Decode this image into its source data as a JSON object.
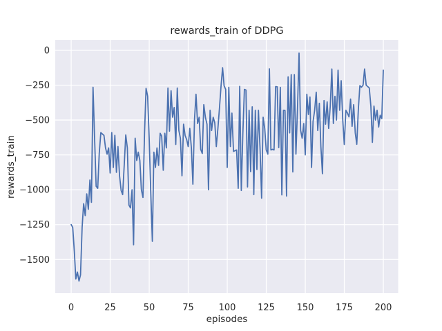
{
  "figure": {
    "title": "rewards_train of DDPG",
    "xlabel": "episodes",
    "ylabel": "rewards_train"
  },
  "colors": {
    "line": "#4c72b0",
    "axes_background": "#eaeaf2",
    "grid": "#ffffff",
    "text": "#262626",
    "figure_background": "#ffffff"
  },
  "chart_data": {
    "type": "line",
    "title": "rewards_train of DDPG",
    "xlabel": "episodes",
    "ylabel": "rewards_train",
    "grid": true,
    "legend": "none",
    "xlim": [
      -10.2,
      209.5
    ],
    "ylim": [
      -1741,
      74
    ],
    "x_ticks": [
      0,
      25,
      50,
      75,
      100,
      125,
      150,
      175,
      200
    ],
    "x_tick_labels": [
      "0",
      "25",
      "50",
      "75",
      "100",
      "125",
      "150",
      "175",
      "200"
    ],
    "y_ticks": [
      0,
      -250,
      -500,
      -750,
      -1000,
      -1250,
      -1500
    ],
    "y_tick_labels": [
      "0",
      "−250",
      "−500",
      "−750",
      "−1000",
      "−1250",
      "−1500"
    ],
    "series_name": "rewards_train",
    "x": [
      0,
      1,
      2,
      3,
      4,
      5,
      6,
      7,
      8,
      9,
      10,
      11,
      12,
      13,
      14,
      15,
      16,
      17,
      18,
      19,
      20,
      21,
      22,
      23,
      24,
      25,
      26,
      27,
      28,
      29,
      30,
      31,
      32,
      33,
      34,
      35,
      36,
      37,
      38,
      39,
      40,
      41,
      42,
      43,
      44,
      45,
      46,
      47,
      48,
      49,
      50,
      51,
      52,
      53,
      54,
      55,
      56,
      57,
      58,
      59,
      60,
      61,
      62,
      63,
      64,
      65,
      66,
      67,
      68,
      69,
      70,
      71,
      72,
      73,
      74,
      75,
      76,
      77,
      78,
      79,
      80,
      81,
      82,
      83,
      84,
      85,
      86,
      87,
      88,
      89,
      90,
      91,
      92,
      93,
      94,
      95,
      96,
      97,
      98,
      99,
      100,
      101,
      102,
      103,
      104,
      105,
      106,
      107,
      108,
      109,
      110,
      111,
      112,
      113,
      114,
      115,
      116,
      117,
      118,
      119,
      120,
      121,
      122,
      123,
      124,
      125,
      126,
      127,
      128,
      129,
      130,
      131,
      132,
      133,
      134,
      135,
      136,
      137,
      138,
      139,
      140,
      141,
      142,
      143,
      144,
      145,
      146,
      147,
      148,
      149,
      150,
      151,
      152,
      153,
      154,
      155,
      156,
      157,
      158,
      159,
      160,
      161,
      162,
      163,
      164,
      165,
      166,
      167,
      168,
      169,
      170,
      171,
      172,
      173,
      174,
      175,
      176,
      177,
      178,
      179,
      180,
      181,
      182,
      183,
      184,
      185,
      186,
      187,
      188,
      189,
      190,
      191,
      192,
      193,
      194,
      195,
      196,
      197,
      198,
      199,
      200
    ],
    "y": [
      -1250,
      -1270,
      -1440,
      -1640,
      -1590,
      -1655,
      -1610,
      -1270,
      -1100,
      -1185,
      -1030,
      -1140,
      -930,
      -1090,
      -265,
      -620,
      -975,
      -990,
      -740,
      -590,
      -600,
      -610,
      -700,
      -745,
      -700,
      -880,
      -590,
      -840,
      -610,
      -875,
      -690,
      -900,
      -1005,
      -1035,
      -820,
      -607,
      -700,
      -1110,
      -1130,
      -1000,
      -1395,
      -630,
      -790,
      -730,
      -790,
      -1000,
      -1055,
      -590,
      -273,
      -330,
      -630,
      -1020,
      -1370,
      -730,
      -840,
      -700,
      -825,
      -595,
      -615,
      -860,
      -595,
      -700,
      -270,
      -580,
      -290,
      -480,
      -410,
      -675,
      -270,
      -575,
      -630,
      -900,
      -530,
      -610,
      -640,
      -690,
      -560,
      -700,
      -960,
      -500,
      -315,
      -525,
      -480,
      -710,
      -740,
      -390,
      -480,
      -530,
      -1000,
      -430,
      -575,
      -480,
      -520,
      -690,
      -560,
      -420,
      -260,
      -125,
      -255,
      -280,
      -840,
      -266,
      -690,
      -450,
      -725,
      -720,
      -715,
      -990,
      -258,
      -1005,
      -600,
      -280,
      -285,
      -980,
      -430,
      -870,
      -405,
      -1035,
      -430,
      -855,
      -430,
      -700,
      -1060,
      -480,
      -560,
      -715,
      -745,
      -133,
      -715,
      -710,
      -715,
      -260,
      -262,
      -698,
      -266,
      -1037,
      -430,
      -432,
      -1045,
      -190,
      -592,
      -174,
      -872,
      -174,
      -745,
      -430,
      -20,
      -575,
      -630,
      -525,
      -750,
      -315,
      -460,
      -335,
      -840,
      -510,
      -430,
      -300,
      -575,
      -380,
      -690,
      -885,
      -360,
      -530,
      -370,
      -560,
      -400,
      -134,
      -525,
      -330,
      -500,
      -142,
      -430,
      -218,
      -500,
      -675,
      -430,
      -450,
      -477,
      -350,
      -545,
      -390,
      -592,
      -674,
      -420,
      -253,
      -265,
      -250,
      -134,
      -250,
      -260,
      -270,
      -400,
      -660,
      -400,
      -500,
      -430,
      -550,
      -466,
      -490,
      -142
    ]
  }
}
